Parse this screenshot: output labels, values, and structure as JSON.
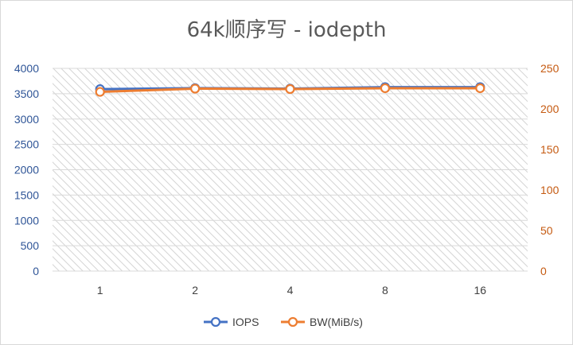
{
  "chart_data": {
    "type": "line",
    "title": "64k顺序写 - iodepth",
    "categories": [
      "1",
      "2",
      "4",
      "8",
      "16"
    ],
    "series": [
      {
        "name": "IOPS",
        "axis": "left",
        "color": "#4472c4",
        "values": [
          3590,
          3610,
          3600,
          3630,
          3630
        ]
      },
      {
        "name": "BW(MiB/s)",
        "axis": "right",
        "color": "#ed7d31",
        "values": [
          221,
          225,
          224.5,
          225.5,
          225.5
        ]
      }
    ],
    "y_left": {
      "range": [
        0,
        4000
      ],
      "ticks": [
        "0",
        "500",
        "1000",
        "1500",
        "2000",
        "2500",
        "3000",
        "3500",
        "4000"
      ]
    },
    "y_right": {
      "range": [
        0,
        250
      ],
      "ticks": [
        "0",
        "50",
        "100",
        "150",
        "200",
        "250"
      ]
    },
    "grid": true,
    "plot_background": "diagonal hatch",
    "legend_position": "bottom"
  }
}
